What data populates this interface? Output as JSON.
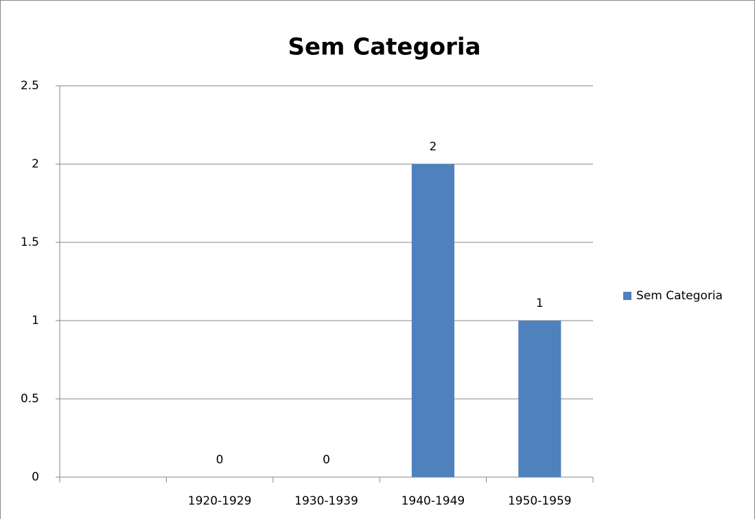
{
  "chart_data": {
    "type": "bar",
    "title": "Sem Categoria",
    "categories": [
      null,
      "1920-1929",
      "1930-1939",
      "1940-1949",
      "1950-1959"
    ],
    "series": [
      {
        "name": "Sem Categoria",
        "color": "#4f81bd",
        "values": [
          null,
          0,
          0,
          2,
          1
        ]
      }
    ],
    "ylim": [
      0,
      2.5
    ],
    "yticks": [
      0,
      0.5,
      1,
      1.5,
      2,
      2.5
    ],
    "grid": true,
    "legend": "right"
  }
}
